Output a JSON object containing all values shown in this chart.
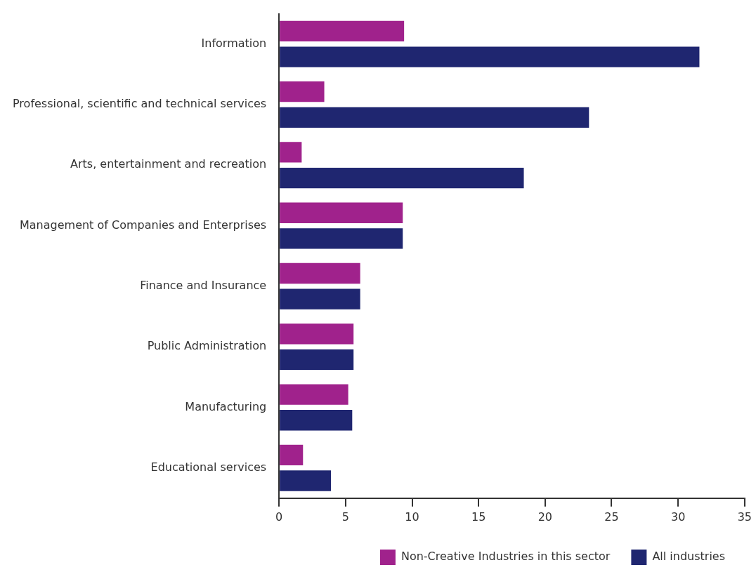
{
  "chart_data": {
    "type": "bar",
    "orientation": "horizontal",
    "categories": [
      "Information",
      "Professional, scientific and technical services",
      "Arts, entertainment and recreation",
      "Management of Companies and Enterprises",
      "Finance and Insurance",
      "Public Administration",
      "Manufacturing",
      "Educational services"
    ],
    "series": [
      {
        "name": "Non-Creative Industries in this sector",
        "color": "#a0228c",
        "values": [
          9.4,
          3.4,
          1.7,
          9.3,
          6.1,
          5.6,
          5.2,
          1.8
        ]
      },
      {
        "name": "All industries",
        "color": "#1f2670",
        "values": [
          31.6,
          23.3,
          18.4,
          9.3,
          6.1,
          5.6,
          5.5,
          3.9
        ]
      }
    ],
    "xlim": [
      0,
      35
    ],
    "xticks": [
      0,
      5,
      10,
      15,
      20,
      25,
      30,
      35
    ],
    "legend": "bottom"
  }
}
